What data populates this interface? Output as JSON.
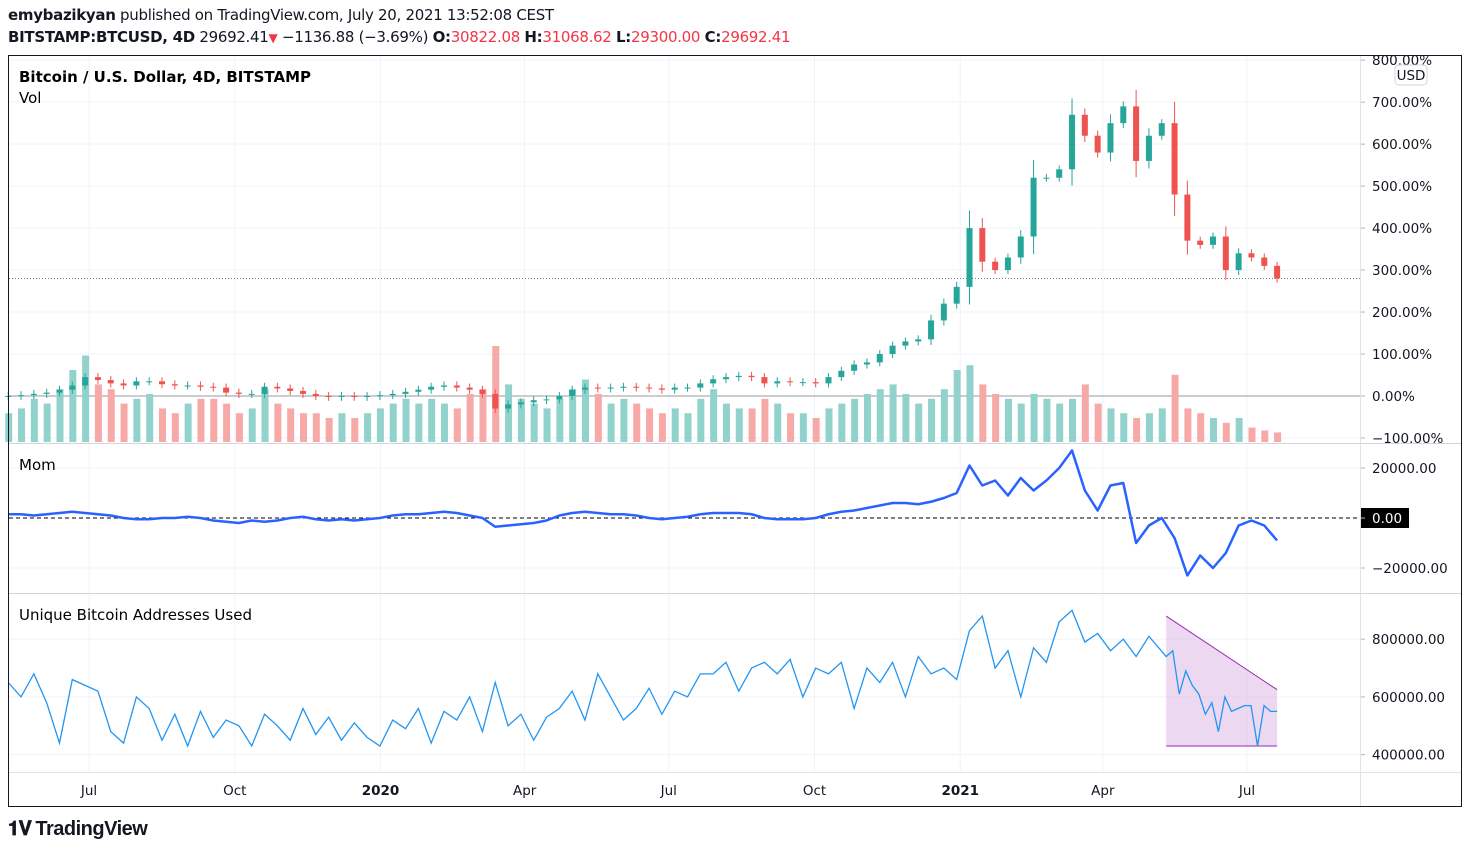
{
  "header": {
    "author": "emybazikyan",
    "published": "published on TradingView.com, July 20, 2021 13:52:08 CEST",
    "symbol": "BITSTAMP:BTCUSD, 4D",
    "last": "29692.41",
    "change": "−1136.88 (−3.69%)",
    "o_label": "O:",
    "o": "30822.08",
    "h_label": "H:",
    "h": "31068.62",
    "l_label": "L:",
    "l": "29300.00",
    "c_label": "C:",
    "c": "29692.41"
  },
  "panes": {
    "price_title": "Bitcoin / U.S. Dollar, 4D, BITSTAMP",
    "vol_title": "Vol",
    "mom_title": "Mom",
    "addr_title": "Unique Bitcoin Addresses Used",
    "currency_badge": "USD",
    "mom_zero_badge": "0.00"
  },
  "logo": "TradingView",
  "colors": {
    "up": "#26a69a",
    "down": "#ef5350",
    "up_vol": "#92d2cc",
    "down_vol": "#f7a9a7",
    "mom": "#2962ff",
    "addr": "#2196f3",
    "triangle_fill": "#e1bee7",
    "triangle_line": "#9c27b0"
  },
  "chart_data": [
    {
      "type": "candlestick",
      "title": "Bitcoin / U.S. Dollar, 4D, BITSTAMP",
      "scale": "percent",
      "x_range": [
        "2019-05-11",
        "2021-07-20"
      ],
      "ylim": [
        -112,
        810
      ],
      "y_ticks": [
        "800.00%",
        "700.00%",
        "600.00%",
        "500.00%",
        "400.00%",
        "300.00%",
        "200.00%",
        "100.00%",
        "0.00%",
        "−100.00%"
      ],
      "y_tick_values": [
        800,
        700,
        600,
        500,
        400,
        300,
        200,
        100,
        0,
        -100
      ],
      "last_value_line": 280,
      "close_pct": [
        0,
        2,
        5,
        8,
        15,
        25,
        45,
        38,
        30,
        25,
        35,
        35,
        28,
        25,
        25,
        22,
        20,
        8,
        5,
        5,
        22,
        18,
        12,
        5,
        0,
        -2,
        0,
        -2,
        0,
        2,
        5,
        10,
        15,
        22,
        25,
        20,
        15,
        5,
        -30,
        -20,
        -15,
        -10,
        -8,
        0,
        15,
        20,
        18,
        20,
        22,
        20,
        18,
        15,
        20,
        20,
        30,
        40,
        45,
        48,
        45,
        30,
        35,
        33,
        33,
        30,
        45,
        60,
        75,
        80,
        100,
        120,
        130,
        135,
        180,
        220,
        260,
        400,
        320,
        300,
        330,
        380,
        520,
        520,
        540,
        670,
        620,
        580,
        650,
        690,
        560,
        620,
        650,
        480,
        370,
        360,
        380,
        300,
        340,
        330,
        310,
        280
      ],
      "volume": [
        30,
        35,
        45,
        40,
        55,
        75,
        90,
        60,
        55,
        40,
        45,
        50,
        35,
        30,
        40,
        45,
        45,
        40,
        30,
        35,
        55,
        40,
        35,
        30,
        30,
        25,
        30,
        25,
        30,
        35,
        40,
        45,
        40,
        45,
        40,
        35,
        50,
        55,
        100,
        60,
        45,
        40,
        35,
        45,
        55,
        65,
        50,
        40,
        45,
        40,
        35,
        30,
        35,
        30,
        45,
        55,
        40,
        35,
        35,
        45,
        40,
        30,
        30,
        25,
        35,
        40,
        45,
        50,
        55,
        60,
        50,
        40,
        45,
        55,
        75,
        80,
        60,
        50,
        45,
        40,
        50,
        45,
        40,
        45,
        60,
        40,
        35,
        30,
        25,
        30,
        35,
        70,
        35,
        30,
        25,
        20,
        25,
        15,
        12,
        10
      ],
      "volume_label": "Vol"
    },
    {
      "type": "line",
      "title": "Mom",
      "x_range": [
        "2019-05-11",
        "2021-07-20"
      ],
      "ylim": [
        -30000,
        30000
      ],
      "y_ticks": [
        "20000.00",
        "0.00",
        "−20000.00"
      ],
      "y_tick_values": [
        20000,
        0,
        -20000
      ],
      "values": [
        1500,
        1500,
        1000,
        1500,
        2000,
        2500,
        2000,
        1500,
        1000,
        0,
        -500,
        -500,
        0,
        0,
        500,
        0,
        -1000,
        -1500,
        -2000,
        -1000,
        -1500,
        -1000,
        0,
        500,
        -500,
        -1000,
        -500,
        -1000,
        -500,
        0,
        1000,
        1500,
        1500,
        2000,
        2500,
        2000,
        1000,
        0,
        -3500,
        -3000,
        -2500,
        -2000,
        -1000,
        1000,
        2000,
        2500,
        2000,
        1500,
        1500,
        1000,
        0,
        -500,
        0,
        500,
        1500,
        2000,
        2000,
        2000,
        1500,
        0,
        -500,
        -500,
        -500,
        0,
        1500,
        2500,
        3000,
        4000,
        5000,
        6000,
        6000,
        5500,
        6500,
        8000,
        10000,
        21000,
        13000,
        15000,
        9000,
        16000,
        11000,
        15000,
        20000,
        27000,
        11000,
        3000,
        13000,
        14000,
        -10000,
        -3000,
        0,
        -8000,
        -23000,
        -15000,
        -20000,
        -14000,
        -3000,
        -1000,
        -3000,
        -9000
      ],
      "series_color": "#2962ff",
      "zero_line": "dashed"
    },
    {
      "type": "line",
      "title": "Unique Bitcoin Addresses Used",
      "x_range": [
        "2019-05-11",
        "2021-07-20"
      ],
      "ylim": [
        340000,
        960000
      ],
      "y_ticks": [
        "800000.00",
        "600000.00",
        "400000.00"
      ],
      "y_tick_values": [
        800000,
        600000,
        400000
      ],
      "values": [
        650000,
        600000,
        680000,
        580000,
        440000,
        660000,
        640000,
        620000,
        480000,
        440000,
        600000,
        560000,
        450000,
        540000,
        430000,
        550000,
        460000,
        520000,
        500000,
        430000,
        540000,
        500000,
        450000,
        560000,
        470000,
        530000,
        450000,
        510000,
        460000,
        430000,
        520000,
        490000,
        560000,
        440000,
        550000,
        520000,
        600000,
        480000,
        650000,
        500000,
        540000,
        450000,
        530000,
        560000,
        620000,
        520000,
        680000,
        600000,
        520000,
        560000,
        630000,
        540000,
        620000,
        600000,
        680000,
        680000,
        720000,
        620000,
        700000,
        720000,
        680000,
        730000,
        600000,
        700000,
        680000,
        720000,
        560000,
        700000,
        650000,
        720000,
        600000,
        740000,
        680000,
        700000,
        660000,
        830000,
        880000,
        700000,
        760000,
        600000,
        770000,
        720000,
        860000,
        900000,
        790000,
        820000,
        760000,
        800000,
        740000,
        810000,
        610000,
        840000,
        780000,
        820000,
        760000,
        840000,
        760000,
        700000,
        780000,
        850000
      ],
      "drawing": {
        "type": "triangle",
        "points": [
          [
            "2021-05-11",
            880000
          ],
          [
            "2021-07-20",
            625000
          ],
          [
            "2021-07-20",
            430000
          ],
          [
            "2021-05-11",
            430000
          ]
        ]
      },
      "tail_values": [
        740000,
        760000,
        610000,
        690000,
        640000,
        610000,
        540000,
        580000,
        480000,
        600000,
        550000,
        560000,
        570000,
        570000,
        430000,
        570000,
        550000,
        550000
      ]
    }
  ],
  "x_axis": {
    "ticks": [
      "Jul",
      "Oct",
      "2020",
      "Apr",
      "Jul",
      "Oct",
      "2021",
      "Apr",
      "Jul"
    ],
    "tick_dates": [
      "2019-07-01",
      "2019-10-01",
      "2020-01-01",
      "2020-04-01",
      "2020-07-01",
      "2020-10-01",
      "2021-01-01",
      "2021-04-01",
      "2021-07-01"
    ],
    "bold": [
      "2020",
      "2021"
    ]
  }
}
